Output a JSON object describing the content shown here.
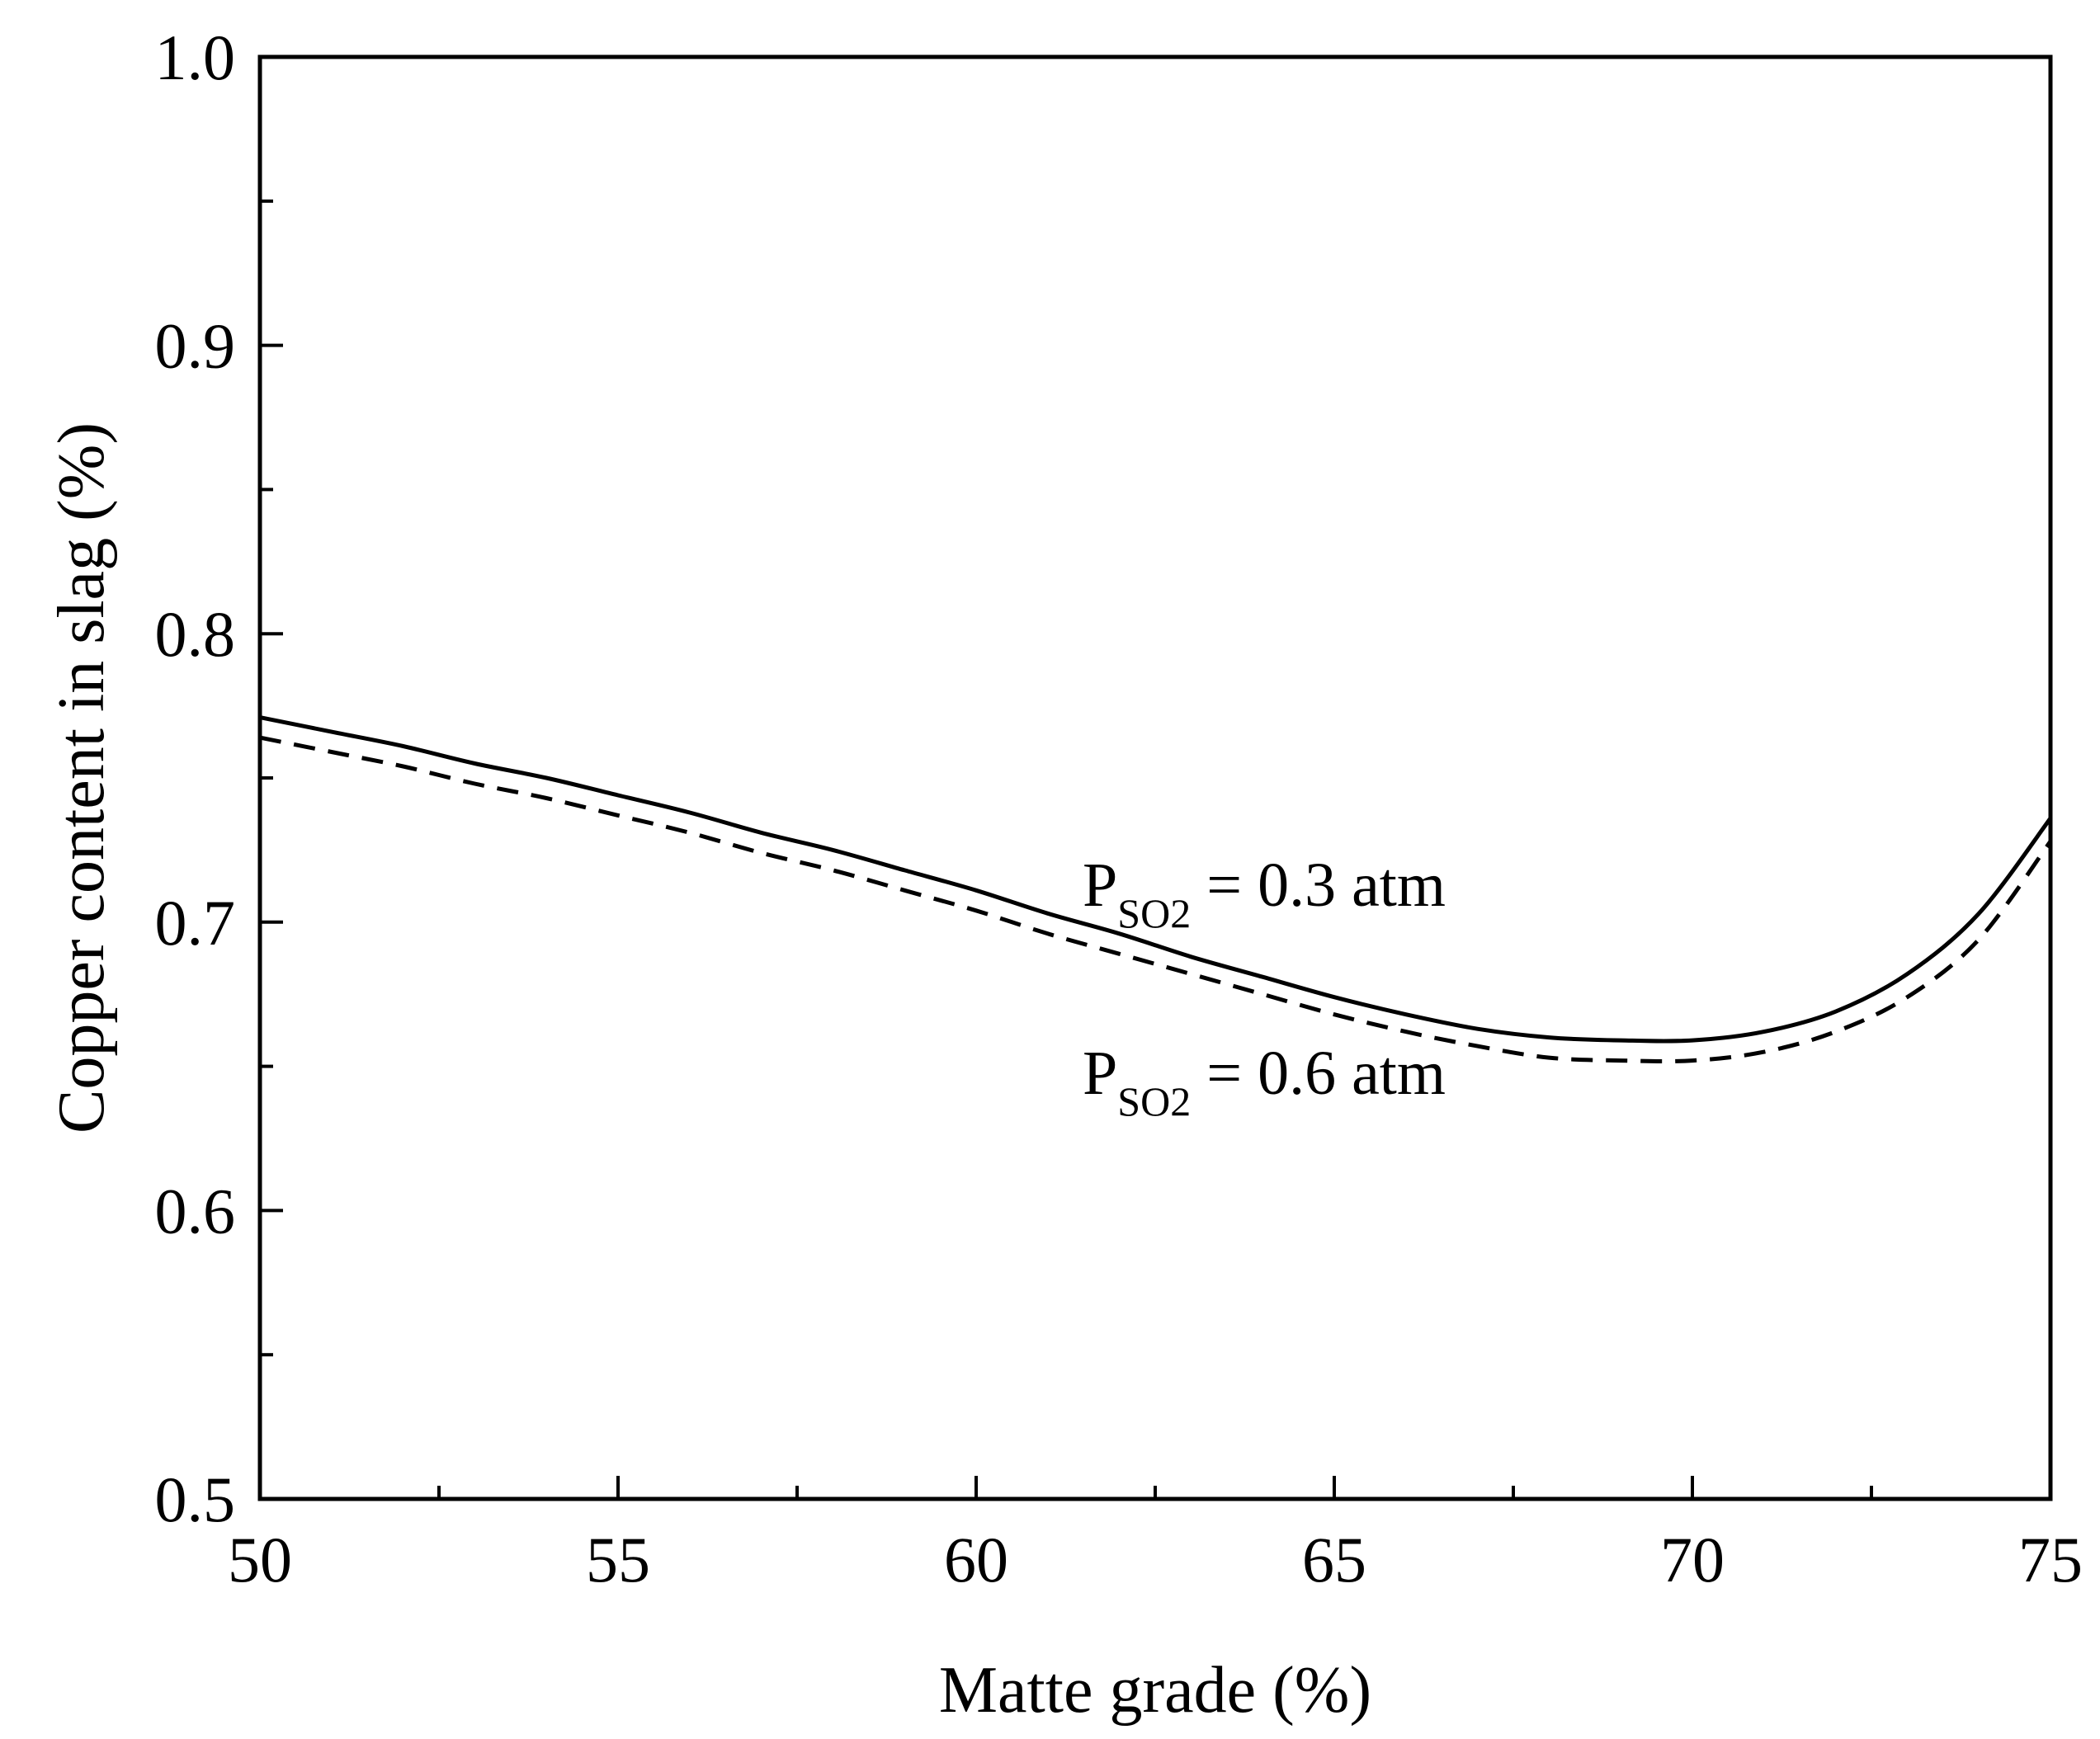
{
  "chart_data": {
    "type": "line",
    "title": "",
    "xlabel": "Matte grade (%)",
    "ylabel": "Copper content in slag (%)",
    "xlim": [
      50,
      75
    ],
    "ylim": [
      0.5,
      1.0
    ],
    "xticks": [
      50,
      55,
      60,
      65,
      70,
      75
    ],
    "xtick_labels": [
      "50",
      "55",
      "60",
      "65",
      "70",
      "75"
    ],
    "yticks": [
      0.5,
      0.6,
      0.7,
      0.8,
      0.9,
      1.0
    ],
    "ytick_labels": [
      "0.5",
      "0.6",
      "0.7",
      "0.8",
      "0.9",
      "1.0"
    ],
    "x_minor_step": 2.5,
    "y_minor_step": 0.05,
    "grid": false,
    "legend": "none",
    "series": [
      {
        "name": "P_SO2 = 0.3 atm",
        "style": "solid",
        "color": "#000000",
        "x": [
          50,
          51,
          52,
          53,
          54,
          55,
          56,
          57,
          58,
          59,
          60,
          61,
          62,
          63,
          64,
          65,
          66,
          67,
          68,
          69,
          70,
          71,
          72,
          73,
          74,
          75
        ],
        "y": [
          0.771,
          0.766,
          0.761,
          0.755,
          0.75,
          0.744,
          0.738,
          0.731,
          0.725,
          0.718,
          0.711,
          0.703,
          0.696,
          0.688,
          0.681,
          0.674,
          0.668,
          0.663,
          0.66,
          0.659,
          0.659,
          0.662,
          0.669,
          0.682,
          0.703,
          0.736
        ]
      },
      {
        "name": "P_SO2 = 0.6 atm",
        "style": "dashed",
        "color": "#000000",
        "x": [
          50,
          51,
          52,
          53,
          54,
          55,
          56,
          57,
          58,
          59,
          60,
          61,
          62,
          63,
          64,
          65,
          66,
          67,
          68,
          69,
          70,
          71,
          72,
          73,
          74,
          75
        ],
        "y": [
          0.764,
          0.759,
          0.754,
          0.748,
          0.743,
          0.737,
          0.731,
          0.724,
          0.718,
          0.711,
          0.704,
          0.696,
          0.689,
          0.682,
          0.675,
          0.668,
          0.662,
          0.657,
          0.653,
          0.652,
          0.652,
          0.655,
          0.662,
          0.674,
          0.694,
          0.728
        ]
      }
    ],
    "annotations": [
      {
        "main": "P",
        "sub": "SO2",
        "rest": " = 0.3 atm"
      },
      {
        "main": "P",
        "sub": "SO2",
        "rest": " = 0.6 atm"
      }
    ]
  }
}
